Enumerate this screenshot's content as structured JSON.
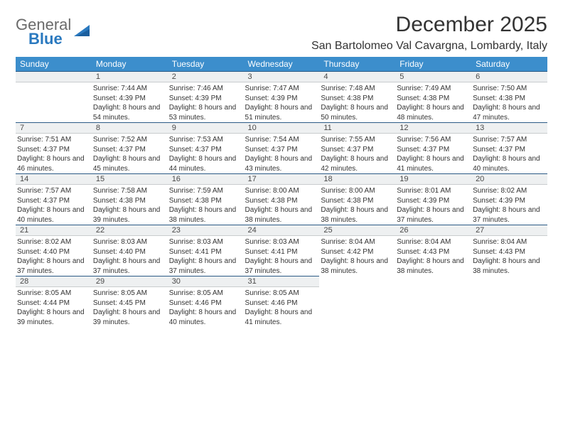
{
  "brand": {
    "general": "General",
    "blue": "Blue"
  },
  "title": "December 2025",
  "location": "San Bartolomeo Val Cavargna, Lombardy, Italy",
  "header_bg": "#3c8ecc",
  "daynum_bg": "#eef0f1",
  "daynum_border_top": "#2c5b86",
  "weekdays": [
    "Sunday",
    "Monday",
    "Tuesday",
    "Wednesday",
    "Thursday",
    "Friday",
    "Saturday"
  ],
  "weeks": [
    [
      null,
      {
        "n": "1",
        "sr": "Sunrise: 7:44 AM",
        "ss": "Sunset: 4:39 PM",
        "dl": "Daylight: 8 hours and 54 minutes."
      },
      {
        "n": "2",
        "sr": "Sunrise: 7:46 AM",
        "ss": "Sunset: 4:39 PM",
        "dl": "Daylight: 8 hours and 53 minutes."
      },
      {
        "n": "3",
        "sr": "Sunrise: 7:47 AM",
        "ss": "Sunset: 4:39 PM",
        "dl": "Daylight: 8 hours and 51 minutes."
      },
      {
        "n": "4",
        "sr": "Sunrise: 7:48 AM",
        "ss": "Sunset: 4:38 PM",
        "dl": "Daylight: 8 hours and 50 minutes."
      },
      {
        "n": "5",
        "sr": "Sunrise: 7:49 AM",
        "ss": "Sunset: 4:38 PM",
        "dl": "Daylight: 8 hours and 48 minutes."
      },
      {
        "n": "6",
        "sr": "Sunrise: 7:50 AM",
        "ss": "Sunset: 4:38 PM",
        "dl": "Daylight: 8 hours and 47 minutes."
      }
    ],
    [
      {
        "n": "7",
        "sr": "Sunrise: 7:51 AM",
        "ss": "Sunset: 4:37 PM",
        "dl": "Daylight: 8 hours and 46 minutes."
      },
      {
        "n": "8",
        "sr": "Sunrise: 7:52 AM",
        "ss": "Sunset: 4:37 PM",
        "dl": "Daylight: 8 hours and 45 minutes."
      },
      {
        "n": "9",
        "sr": "Sunrise: 7:53 AM",
        "ss": "Sunset: 4:37 PM",
        "dl": "Daylight: 8 hours and 44 minutes."
      },
      {
        "n": "10",
        "sr": "Sunrise: 7:54 AM",
        "ss": "Sunset: 4:37 PM",
        "dl": "Daylight: 8 hours and 43 minutes."
      },
      {
        "n": "11",
        "sr": "Sunrise: 7:55 AM",
        "ss": "Sunset: 4:37 PM",
        "dl": "Daylight: 8 hours and 42 minutes."
      },
      {
        "n": "12",
        "sr": "Sunrise: 7:56 AM",
        "ss": "Sunset: 4:37 PM",
        "dl": "Daylight: 8 hours and 41 minutes."
      },
      {
        "n": "13",
        "sr": "Sunrise: 7:57 AM",
        "ss": "Sunset: 4:37 PM",
        "dl": "Daylight: 8 hours and 40 minutes."
      }
    ],
    [
      {
        "n": "14",
        "sr": "Sunrise: 7:57 AM",
        "ss": "Sunset: 4:37 PM",
        "dl": "Daylight: 8 hours and 40 minutes."
      },
      {
        "n": "15",
        "sr": "Sunrise: 7:58 AM",
        "ss": "Sunset: 4:38 PM",
        "dl": "Daylight: 8 hours and 39 minutes."
      },
      {
        "n": "16",
        "sr": "Sunrise: 7:59 AM",
        "ss": "Sunset: 4:38 PM",
        "dl": "Daylight: 8 hours and 38 minutes."
      },
      {
        "n": "17",
        "sr": "Sunrise: 8:00 AM",
        "ss": "Sunset: 4:38 PM",
        "dl": "Daylight: 8 hours and 38 minutes."
      },
      {
        "n": "18",
        "sr": "Sunrise: 8:00 AM",
        "ss": "Sunset: 4:38 PM",
        "dl": "Daylight: 8 hours and 38 minutes."
      },
      {
        "n": "19",
        "sr": "Sunrise: 8:01 AM",
        "ss": "Sunset: 4:39 PM",
        "dl": "Daylight: 8 hours and 37 minutes."
      },
      {
        "n": "20",
        "sr": "Sunrise: 8:02 AM",
        "ss": "Sunset: 4:39 PM",
        "dl": "Daylight: 8 hours and 37 minutes."
      }
    ],
    [
      {
        "n": "21",
        "sr": "Sunrise: 8:02 AM",
        "ss": "Sunset: 4:40 PM",
        "dl": "Daylight: 8 hours and 37 minutes."
      },
      {
        "n": "22",
        "sr": "Sunrise: 8:03 AM",
        "ss": "Sunset: 4:40 PM",
        "dl": "Daylight: 8 hours and 37 minutes."
      },
      {
        "n": "23",
        "sr": "Sunrise: 8:03 AM",
        "ss": "Sunset: 4:41 PM",
        "dl": "Daylight: 8 hours and 37 minutes."
      },
      {
        "n": "24",
        "sr": "Sunrise: 8:03 AM",
        "ss": "Sunset: 4:41 PM",
        "dl": "Daylight: 8 hours and 37 minutes."
      },
      {
        "n": "25",
        "sr": "Sunrise: 8:04 AM",
        "ss": "Sunset: 4:42 PM",
        "dl": "Daylight: 8 hours and 38 minutes."
      },
      {
        "n": "26",
        "sr": "Sunrise: 8:04 AM",
        "ss": "Sunset: 4:43 PM",
        "dl": "Daylight: 8 hours and 38 minutes."
      },
      {
        "n": "27",
        "sr": "Sunrise: 8:04 AM",
        "ss": "Sunset: 4:43 PM",
        "dl": "Daylight: 8 hours and 38 minutes."
      }
    ],
    [
      {
        "n": "28",
        "sr": "Sunrise: 8:05 AM",
        "ss": "Sunset: 4:44 PM",
        "dl": "Daylight: 8 hours and 39 minutes."
      },
      {
        "n": "29",
        "sr": "Sunrise: 8:05 AM",
        "ss": "Sunset: 4:45 PM",
        "dl": "Daylight: 8 hours and 39 minutes."
      },
      {
        "n": "30",
        "sr": "Sunrise: 8:05 AM",
        "ss": "Sunset: 4:46 PM",
        "dl": "Daylight: 8 hours and 40 minutes."
      },
      {
        "n": "31",
        "sr": "Sunrise: 8:05 AM",
        "ss": "Sunset: 4:46 PM",
        "dl": "Daylight: 8 hours and 41 minutes."
      },
      null,
      null,
      null
    ]
  ]
}
